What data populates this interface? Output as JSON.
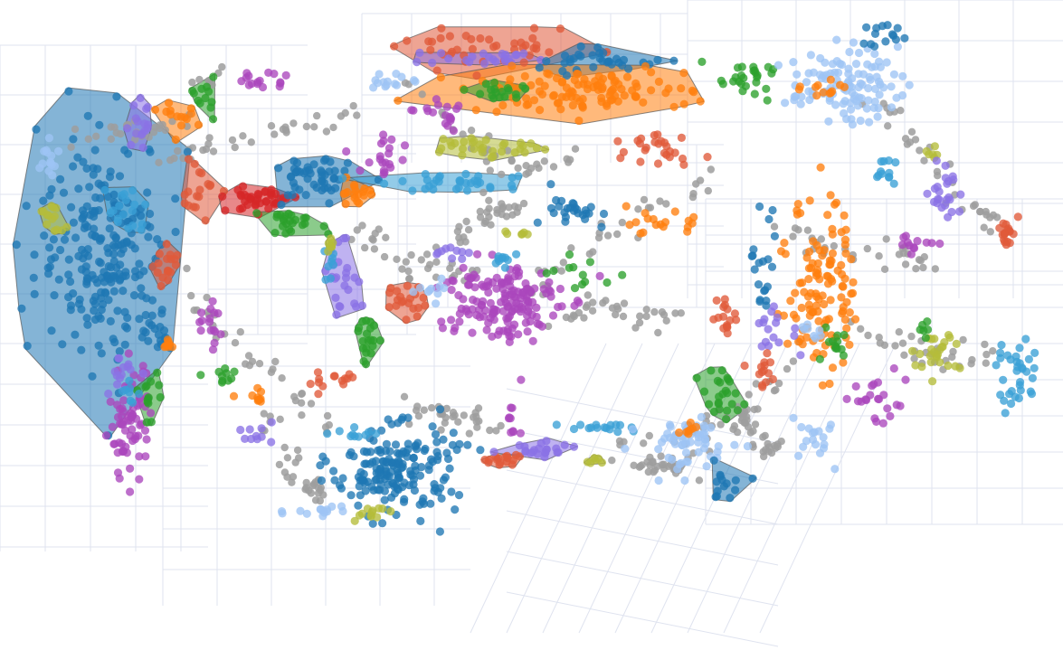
{
  "colors": {
    "background": "#ffffff",
    "grid": "#dfe3ef",
    "point_opacity": 0.78,
    "hull_opacity": 0.55,
    "hull_stroke": "#555555"
  },
  "palette": {
    "blue": "#1f77b4",
    "lightblue": "#9ec4f5",
    "skyblue": "#3aa0d6",
    "orange": "#ff7f0e",
    "green": "#2ca02c",
    "red": "#d62728",
    "tomato": "#e05a3a",
    "purple": "#ab47bc",
    "violet": "#8a72e6",
    "olive": "#b5bd3a",
    "gray": "#9e9e9e"
  },
  "chart_data": {
    "type": "scatter",
    "description_visible_text": "",
    "xlim": [
      0,
      100
    ],
    "ylim": [
      0,
      100
    ],
    "grid": true,
    "legend": "none",
    "clusters": [
      {
        "color": "blue",
        "cx": 8.5,
        "cy": 59,
        "sx": 3.2,
        "sy": 9.5,
        "n": 230,
        "hull": true
      },
      {
        "color": "skyblue",
        "cx": 10.5,
        "cy": 65,
        "sx": 1.0,
        "sy": 2.5,
        "n": 18,
        "hull": true
      },
      {
        "color": "olive",
        "cx": 3.2,
        "cy": 64,
        "sx": 0.7,
        "sy": 1.4,
        "n": 14,
        "hull": true
      },
      {
        "color": "lightblue",
        "cx": 3.0,
        "cy": 74,
        "sx": 0.6,
        "sy": 3.0,
        "n": 14,
        "hull": false
      },
      {
        "color": "tomato",
        "cx": 14.5,
        "cy": 55.5,
        "sx": 0.6,
        "sy": 2.0,
        "n": 18,
        "hull": true
      },
      {
        "color": "violet",
        "cx": 12.0,
        "cy": 80,
        "sx": 0.8,
        "sy": 1.8,
        "n": 16,
        "hull": true
      },
      {
        "color": "orange",
        "cx": 16.0,
        "cy": 81.5,
        "sx": 0.9,
        "sy": 1.4,
        "n": 14,
        "hull": true
      },
      {
        "color": "green",
        "cx": 18.0,
        "cy": 85,
        "sx": 0.5,
        "sy": 1.6,
        "n": 12,
        "hull": true
      },
      {
        "color": "purple",
        "cx": 23.5,
        "cy": 88,
        "sx": 1.5,
        "sy": 0.8,
        "n": 16,
        "hull": false
      },
      {
        "color": "tomato",
        "cx": 17.5,
        "cy": 69,
        "sx": 0.9,
        "sy": 2.8,
        "n": 18,
        "hull": true
      },
      {
        "color": "purple",
        "cx": 10.8,
        "cy": 29,
        "sx": 1.0,
        "sy": 4.8,
        "n": 70,
        "hull": false
      },
      {
        "color": "violet",
        "cx": 10.0,
        "cy": 37,
        "sx": 0.6,
        "sy": 1.5,
        "n": 14,
        "hull": false
      },
      {
        "color": "green",
        "cx": 12.8,
        "cy": 33,
        "sx": 0.5,
        "sy": 2.5,
        "n": 14,
        "hull": true
      },
      {
        "color": "skyblue",
        "cx": 10.8,
        "cy": 35,
        "sx": 0.4,
        "sy": 1.2,
        "n": 8,
        "hull": false
      },
      {
        "color": "blue",
        "cx": 13.2,
        "cy": 45,
        "sx": 0.6,
        "sy": 1.8,
        "n": 16,
        "hull": false
      },
      {
        "color": "orange",
        "cx": 14.6,
        "cy": 42,
        "sx": 0.4,
        "sy": 1.2,
        "n": 8,
        "hull": false
      },
      {
        "color": "purple",
        "cx": 18.6,
        "cy": 46,
        "sx": 0.8,
        "sy": 2.2,
        "n": 16,
        "hull": false
      },
      {
        "color": "green",
        "cx": 20.0,
        "cy": 37,
        "sx": 0.9,
        "sy": 0.6,
        "n": 10,
        "hull": false
      },
      {
        "color": "orange",
        "cx": 23.0,
        "cy": 33,
        "sx": 0.7,
        "sy": 0.8,
        "n": 10,
        "hull": false
      },
      {
        "color": "violet",
        "cx": 23.5,
        "cy": 26.5,
        "sx": 0.9,
        "sy": 0.8,
        "n": 10,
        "hull": false
      },
      {
        "color": "tomato",
        "cx": 30.5,
        "cy": 36,
        "sx": 1.6,
        "sy": 1.0,
        "n": 14,
        "hull": false
      },
      {
        "color": "red",
        "cx": 23.5,
        "cy": 67.5,
        "sx": 1.6,
        "sy": 1.2,
        "n": 40,
        "hull": true
      },
      {
        "color": "blue",
        "cx": 28.5,
        "cy": 70.5,
        "sx": 1.8,
        "sy": 2.2,
        "n": 50,
        "hull": true
      },
      {
        "color": "orange",
        "cx": 32.5,
        "cy": 68.5,
        "sx": 0.9,
        "sy": 1.1,
        "n": 18,
        "hull": true
      },
      {
        "color": "green",
        "cx": 26.5,
        "cy": 63.5,
        "sx": 1.5,
        "sy": 1.0,
        "n": 24,
        "hull": true
      },
      {
        "color": "violet",
        "cx": 31.5,
        "cy": 53.5,
        "sx": 1.0,
        "sy": 3.0,
        "n": 24,
        "hull": true
      },
      {
        "color": "skyblue",
        "cx": 30.5,
        "cy": 56,
        "sx": 0.6,
        "sy": 1.6,
        "n": 8,
        "hull": false
      },
      {
        "color": "olive",
        "cx": 30.5,
        "cy": 59.5,
        "sx": 0.5,
        "sy": 0.8,
        "n": 8,
        "hull": true
      },
      {
        "color": "tomato",
        "cx": 37.5,
        "cy": 50,
        "sx": 0.9,
        "sy": 1.5,
        "n": 20,
        "hull": true
      },
      {
        "color": "green",
        "cx": 34.0,
        "cy": 44,
        "sx": 0.5,
        "sy": 2.6,
        "n": 20,
        "hull": true
      },
      {
        "color": "purple",
        "cx": 35.5,
        "cy": 75,
        "sx": 1.2,
        "sy": 2.2,
        "n": 20,
        "hull": false
      },
      {
        "color": "lightblue",
        "cx": 36.5,
        "cy": 87.5,
        "sx": 1.4,
        "sy": 0.8,
        "n": 14,
        "hull": false
      },
      {
        "color": "purple",
        "cx": 40.0,
        "cy": 83,
        "sx": 1.4,
        "sy": 0.6,
        "n": 10,
        "hull": false
      },
      {
        "color": "purple",
        "cx": 42.0,
        "cy": 82,
        "sx": 0.4,
        "sy": 1.5,
        "n": 8,
        "hull": false
      },
      {
        "color": "olive",
        "cx": 45.5,
        "cy": 76.5,
        "sx": 2.6,
        "sy": 1.0,
        "n": 32,
        "hull": true
      },
      {
        "color": "skyblue",
        "cx": 43.0,
        "cy": 70,
        "sx": 3.8,
        "sy": 0.8,
        "n": 34,
        "hull": true
      },
      {
        "color": "tomato",
        "cx": 46.0,
        "cy": 93,
        "sx": 4.5,
        "sy": 1.5,
        "n": 40,
        "hull": true
      },
      {
        "color": "violet",
        "cx": 45.5,
        "cy": 91.5,
        "sx": 3.5,
        "sy": 0.6,
        "n": 24,
        "hull": true
      },
      {
        "color": "blue",
        "cx": 56.5,
        "cy": 91,
        "sx": 4.0,
        "sy": 1.0,
        "n": 34,
        "hull": true
      },
      {
        "color": "orange",
        "cx": 54.0,
        "cy": 86,
        "sx": 5.5,
        "sy": 1.8,
        "n": 110,
        "hull": true
      },
      {
        "color": "green",
        "cx": 47.0,
        "cy": 86,
        "sx": 1.6,
        "sy": 0.8,
        "n": 18,
        "hull": true
      },
      {
        "color": "tomato",
        "cx": 62.5,
        "cy": 76.5,
        "sx": 1.6,
        "sy": 1.6,
        "n": 26,
        "hull": false
      },
      {
        "color": "purple",
        "cx": 46.5,
        "cy": 50,
        "sx": 3.0,
        "sy": 3.5,
        "n": 160,
        "hull": false
      },
      {
        "color": "violet",
        "cx": 42.0,
        "cy": 58,
        "sx": 0.8,
        "sy": 0.8,
        "n": 10,
        "hull": false
      },
      {
        "color": "lightblue",
        "cx": 40.0,
        "cy": 52,
        "sx": 0.8,
        "sy": 1.0,
        "n": 10,
        "hull": false
      },
      {
        "color": "skyblue",
        "cx": 47.5,
        "cy": 57,
        "sx": 0.8,
        "sy": 0.5,
        "n": 10,
        "hull": false
      },
      {
        "color": "olive",
        "cx": 49.0,
        "cy": 61.5,
        "sx": 1.0,
        "sy": 0.4,
        "n": 6,
        "hull": false
      },
      {
        "color": "blue",
        "cx": 54.5,
        "cy": 65.5,
        "sx": 1.8,
        "sy": 1.5,
        "n": 26,
        "hull": false
      },
      {
        "color": "green",
        "cx": 54.5,
        "cy": 54,
        "sx": 1.6,
        "sy": 1.5,
        "n": 12,
        "hull": false
      },
      {
        "color": "orange",
        "cx": 62.5,
        "cy": 63,
        "sx": 1.5,
        "sy": 1.0,
        "n": 18,
        "hull": false
      },
      {
        "color": "blue",
        "cx": 36.5,
        "cy": 21,
        "sx": 3.0,
        "sy": 3.8,
        "n": 180,
        "hull": false
      },
      {
        "color": "skyblue",
        "cx": 33.0,
        "cy": 27,
        "sx": 1.0,
        "sy": 0.5,
        "n": 10,
        "hull": false
      },
      {
        "color": "lightblue",
        "cx": 29.0,
        "cy": 14,
        "sx": 2.0,
        "sy": 0.6,
        "n": 14,
        "hull": false
      },
      {
        "color": "olive",
        "cx": 34.0,
        "cy": 13.5,
        "sx": 0.9,
        "sy": 0.8,
        "n": 12,
        "hull": false
      },
      {
        "color": "tomato",
        "cx": 46.8,
        "cy": 22.5,
        "sx": 1.0,
        "sy": 0.6,
        "n": 16,
        "hull": true
      },
      {
        "color": "purple",
        "cx": 48.0,
        "cy": 30,
        "sx": 0.4,
        "sy": 1.5,
        "n": 10,
        "hull": false
      },
      {
        "color": "violet",
        "cx": 51.5,
        "cy": 24.5,
        "sx": 2.0,
        "sy": 0.6,
        "n": 22,
        "hull": true
      },
      {
        "color": "skyblue",
        "cx": 55.5,
        "cy": 28.5,
        "sx": 1.8,
        "sy": 0.4,
        "n": 16,
        "hull": false
      },
      {
        "color": "olive",
        "cx": 56.0,
        "cy": 22.5,
        "sx": 0.8,
        "sy": 0.4,
        "n": 6,
        "hull": true
      },
      {
        "color": "lightblue",
        "cx": 65.0,
        "cy": 25.5,
        "sx": 2.2,
        "sy": 2.3,
        "n": 60,
        "hull": false
      },
      {
        "color": "orange",
        "cx": 65.0,
        "cy": 27.5,
        "sx": 0.5,
        "sy": 0.8,
        "n": 8,
        "hull": false
      },
      {
        "color": "blue",
        "cx": 68.5,
        "cy": 19,
        "sx": 1.0,
        "sy": 1.4,
        "n": 14,
        "hull": true
      },
      {
        "color": "green",
        "cx": 68.2,
        "cy": 33.5,
        "sx": 1.0,
        "sy": 2.4,
        "n": 24,
        "hull": true
      },
      {
        "color": "lightblue",
        "cx": 77.0,
        "cy": 27,
        "sx": 1.4,
        "sy": 2.6,
        "n": 18,
        "hull": false
      },
      {
        "color": "green",
        "cx": 70.5,
        "cy": 87.5,
        "sx": 2.0,
        "sy": 1.5,
        "n": 26,
        "hull": false
      },
      {
        "color": "lightblue",
        "cx": 80.0,
        "cy": 87,
        "sx": 2.6,
        "sy": 3.0,
        "n": 110,
        "hull": false
      },
      {
        "color": "orange",
        "cx": 78.0,
        "cy": 86.5,
        "sx": 1.0,
        "sy": 0.8,
        "n": 12,
        "hull": false
      },
      {
        "color": "blue",
        "cx": 84.0,
        "cy": 95.5,
        "sx": 1.0,
        "sy": 1.2,
        "n": 14,
        "hull": false
      },
      {
        "color": "skyblue",
        "cx": 84.0,
        "cy": 72,
        "sx": 0.6,
        "sy": 2.0,
        "n": 12,
        "hull": false
      },
      {
        "color": "olive",
        "cx": 89.0,
        "cy": 75.5,
        "sx": 0.5,
        "sy": 1.0,
        "n": 6,
        "hull": false
      },
      {
        "color": "violet",
        "cx": 90.0,
        "cy": 68.5,
        "sx": 0.8,
        "sy": 2.4,
        "n": 24,
        "hull": false
      },
      {
        "color": "purple",
        "cx": 87.5,
        "cy": 60,
        "sx": 1.0,
        "sy": 0.8,
        "n": 12,
        "hull": false
      },
      {
        "color": "tomato",
        "cx": 95.8,
        "cy": 61.5,
        "sx": 0.6,
        "sy": 1.2,
        "n": 18,
        "hull": false
      },
      {
        "color": "orange",
        "cx": 78.0,
        "cy": 53,
        "sx": 1.6,
        "sy": 8.0,
        "n": 120,
        "hull": false
      },
      {
        "color": "blue",
        "cx": 72.5,
        "cy": 56,
        "sx": 0.8,
        "sy": 4.5,
        "n": 20,
        "hull": false
      },
      {
        "color": "violet",
        "cx": 73.5,
        "cy": 45,
        "sx": 1.0,
        "sy": 2.5,
        "n": 16,
        "hull": false
      },
      {
        "color": "tomato",
        "cx": 68.5,
        "cy": 47,
        "sx": 0.8,
        "sy": 1.6,
        "n": 16,
        "hull": false
      },
      {
        "color": "tomato",
        "cx": 72.5,
        "cy": 38.5,
        "sx": 0.7,
        "sy": 1.8,
        "n": 14,
        "hull": false
      },
      {
        "color": "green",
        "cx": 79.5,
        "cy": 42.5,
        "sx": 0.8,
        "sy": 1.5,
        "n": 12,
        "hull": false
      },
      {
        "color": "purple",
        "cx": 83.0,
        "cy": 33,
        "sx": 1.6,
        "sy": 2.6,
        "n": 22,
        "hull": false
      },
      {
        "color": "olive",
        "cx": 89.0,
        "cy": 41,
        "sx": 1.2,
        "sy": 2.0,
        "n": 26,
        "hull": false
      },
      {
        "color": "green",
        "cx": 87.8,
        "cy": 45,
        "sx": 0.4,
        "sy": 0.6,
        "n": 6,
        "hull": false
      },
      {
        "color": "skyblue",
        "cx": 97.0,
        "cy": 37,
        "sx": 1.0,
        "sy": 3.4,
        "n": 34,
        "hull": false
      },
      {
        "color": "lightblue",
        "cx": 77.0,
        "cy": 44.5,
        "sx": 0.6,
        "sy": 1.0,
        "n": 8,
        "hull": false
      }
    ],
    "gray_background_points": 520
  }
}
